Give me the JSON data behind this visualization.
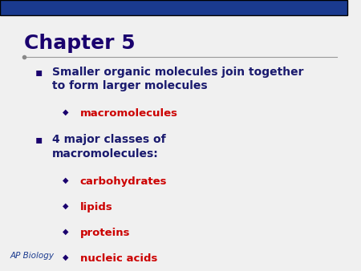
{
  "title": "Chapter 5",
  "title_color": "#1a006e",
  "title_underline": true,
  "background_color": "#f0f0f0",
  "header_bar_color": "#1a3a8f",
  "header_bar_height": 0.055,
  "ap_biology_text": "AP Biology",
  "ap_biology_color": "#1a3a8f",
  "bullet_color": "#1a006e",
  "sub_bullet_color": "#8b0000",
  "link_color": "#cc0000",
  "bullet_square": "▪",
  "sub_bullet_diamond": "◆",
  "bullets": [
    {
      "text": "Smaller organic molecules join together\nto form larger molecules",
      "level": 1,
      "color": "#1a1a6e"
    },
    {
      "text": "macromolecules",
      "level": 2,
      "color": "#cc0000",
      "underline": true
    },
    {
      "text": "4 major classes of\nmacromolecules:",
      "level": 1,
      "color": "#1a1a6e"
    },
    {
      "text": "carbohydrates",
      "level": 2,
      "color": "#cc0000",
      "underline": true
    },
    {
      "text": "lipids",
      "level": 2,
      "color": "#cc0000",
      "underline": true
    },
    {
      "text": "proteins",
      "level": 2,
      "color": "#cc0000",
      "underline": true
    },
    {
      "text": "nucleic acids",
      "level": 2,
      "color": "#cc0000",
      "underline": true
    }
  ]
}
